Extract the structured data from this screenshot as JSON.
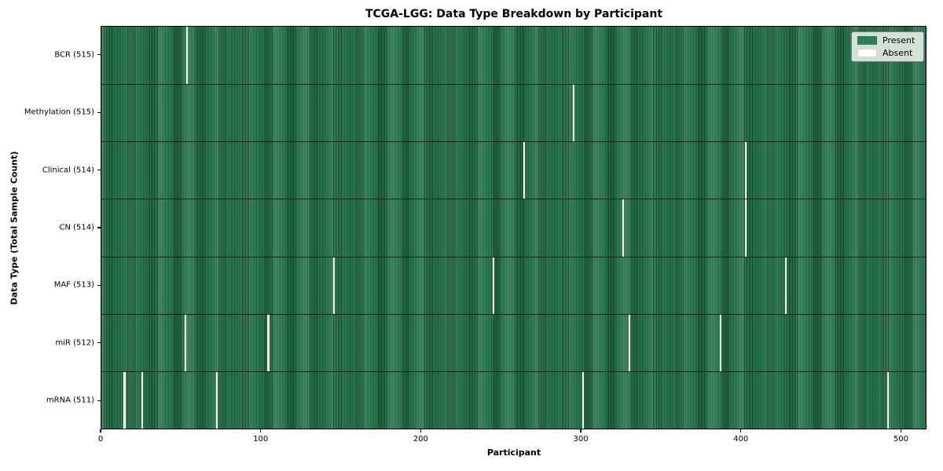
{
  "chart_data": {
    "type": "heatmap",
    "title": "TCGA-LGG: Data Type Breakdown by Participant",
    "xlabel": "Participant",
    "ylabel": "Data Type (Total Sample Count)",
    "n_participants": 516,
    "xlim": [
      0,
      516
    ],
    "x_ticks": [
      0,
      100,
      200,
      300,
      400,
      500
    ],
    "grid": false,
    "legend_position": "upper right",
    "legend": [
      {
        "label": "Present",
        "color": "#2e8b57"
      },
      {
        "label": "Absent",
        "color": "#ffffff"
      }
    ],
    "colors": {
      "present": "#2e8b57",
      "absent": "#f7f7f4",
      "row_separator": "#0a140c",
      "frame": "#000000",
      "legend_background": "#eef2ed"
    },
    "rows": [
      {
        "label": "BCR (515)",
        "data_type": "BCR",
        "present_count": 515,
        "absent_count": 1,
        "absent_participants": [
          53
        ]
      },
      {
        "label": "Methylation (515)",
        "data_type": "Methylation",
        "present_count": 515,
        "absent_count": 1,
        "absent_participants": [
          295
        ]
      },
      {
        "label": "Clinical (514)",
        "data_type": "Clinical",
        "present_count": 514,
        "absent_count": 2,
        "absent_participants": [
          264,
          403
        ]
      },
      {
        "label": "CN (514)",
        "data_type": "CN",
        "present_count": 514,
        "absent_count": 2,
        "absent_participants": [
          326,
          403
        ]
      },
      {
        "label": "MAF (513)",
        "data_type": "MAF",
        "present_count": 513,
        "absent_count": 3,
        "absent_participants": [
          145,
          245,
          428
        ]
      },
      {
        "label": "miR (512)",
        "data_type": "miR",
        "present_count": 512,
        "absent_count": 4,
        "absent_participants": [
          52,
          104,
          330,
          387
        ]
      },
      {
        "label": "mRNA (511)",
        "data_type": "mRNA",
        "present_count": 511,
        "absent_count": 5,
        "absent_participants": [
          14,
          25,
          72,
          301,
          492
        ]
      }
    ]
  }
}
